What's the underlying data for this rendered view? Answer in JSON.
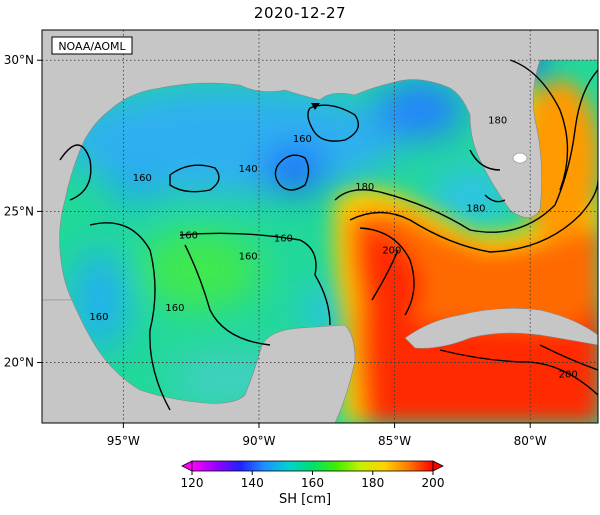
{
  "title": "2020-12-27",
  "credit": "NOAA/AOML",
  "map": {
    "lon_range": [
      -98.0,
      -77.5
    ],
    "lat_range": [
      18.0,
      31.0
    ],
    "lon_ticks": [
      {
        "value": -95,
        "label": "95°W"
      },
      {
        "value": -90,
        "label": "90°W"
      },
      {
        "value": -85,
        "label": "85°W"
      },
      {
        "value": -80,
        "label": "80°W"
      }
    ],
    "lat_ticks": [
      {
        "value": 30,
        "label": "30°N"
      },
      {
        "value": 25,
        "label": "25°N"
      },
      {
        "value": 20,
        "label": "20°N"
      }
    ],
    "contour_labels": [
      {
        "text": "160",
        "lon": -88.4,
        "lat": 27.4
      },
      {
        "text": "160",
        "lon": -94.3,
        "lat": 26.1
      },
      {
        "text": "140",
        "lon": -90.4,
        "lat": 26.4
      },
      {
        "text": "160",
        "lon": -92.6,
        "lat": 24.2
      },
      {
        "text": "160",
        "lon": -90.4,
        "lat": 23.5
      },
      {
        "text": "160",
        "lon": -89.1,
        "lat": 24.1
      },
      {
        "text": "160",
        "lon": -93.1,
        "lat": 21.8
      },
      {
        "text": "160",
        "lon": -95.9,
        "lat": 21.5
      },
      {
        "text": "180",
        "lon": -86.1,
        "lat": 25.8
      },
      {
        "text": "200",
        "lon": -85.1,
        "lat": 23.7
      },
      {
        "text": "180",
        "lon": -81.2,
        "lat": 28.0
      },
      {
        "text": "180",
        "lon": -82.0,
        "lat": 25.1
      },
      {
        "text": "200",
        "lon": -78.6,
        "lat": 19.6
      }
    ],
    "colors": {
      "land": "#c6c6c6",
      "ocean_low": "#1e78ff",
      "ocean_mid": "#14d2a0",
      "ocean_high": "#ff1e00"
    }
  },
  "colorbar": {
    "label": "SH [cm]",
    "min": 120,
    "max": 200,
    "ticks": [
      {
        "value": 120,
        "label": "120"
      },
      {
        "value": 140,
        "label": "140"
      },
      {
        "value": 160,
        "label": "160"
      },
      {
        "value": 180,
        "label": "180"
      },
      {
        "value": 200,
        "label": "200"
      }
    ],
    "stops": [
      {
        "value": 120,
        "color": "#ff00ff"
      },
      {
        "value": 128,
        "color": "#9a00ff"
      },
      {
        "value": 136,
        "color": "#2020ff"
      },
      {
        "value": 144,
        "color": "#1e90ff"
      },
      {
        "value": 152,
        "color": "#00d2d2"
      },
      {
        "value": 160,
        "color": "#00e070"
      },
      {
        "value": 168,
        "color": "#40f000"
      },
      {
        "value": 176,
        "color": "#c8f000"
      },
      {
        "value": 184,
        "color": "#ffd200"
      },
      {
        "value": 192,
        "color": "#ff7800"
      },
      {
        "value": 200,
        "color": "#ff0000"
      }
    ]
  }
}
